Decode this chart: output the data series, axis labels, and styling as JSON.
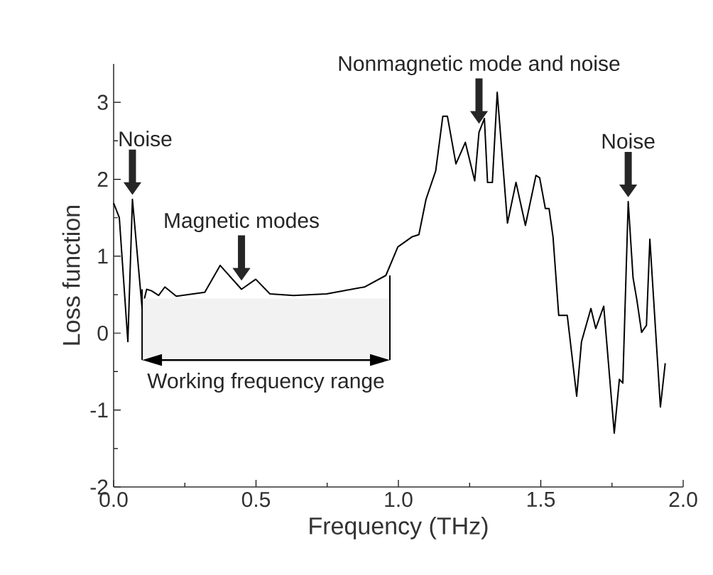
{
  "chart_data": {
    "type": "line",
    "xlabel": "Frequency (THz)",
    "ylabel": "Loss function",
    "x": [
      0,
      0.02,
      0.05,
      0.066,
      0.1,
      0.116,
      0.133,
      0.158,
      0.18,
      0.22,
      0.32,
      0.374,
      0.449,
      0.499,
      0.549,
      0.632,
      0.748,
      0.881,
      0.956,
      0.998,
      1.047,
      1.072,
      1.097,
      1.131,
      1.156,
      1.172,
      1.202,
      1.235,
      1.268,
      1.283,
      1.302,
      1.313,
      1.33,
      1.347,
      1.383,
      1.413,
      1.446,
      1.483,
      1.496,
      1.516,
      1.529,
      1.543,
      1.563,
      1.593,
      1.626,
      1.643,
      1.676,
      1.693,
      1.721,
      1.758,
      1.776,
      1.788,
      1.807,
      1.824,
      1.837,
      1.854,
      1.871,
      1.883,
      1.92,
      1.937
    ],
    "series": [
      {
        "color": "#000000",
        "values": [
          1.69,
          1.5,
          -0.11,
          1.74,
          0.32,
          0.57,
          0.55,
          0.49,
          0.6,
          0.48,
          0.53,
          0.88,
          0.57,
          0.7,
          0.51,
          0.49,
          0.51,
          0.6,
          0.75,
          1.12,
          1.25,
          1.28,
          1.74,
          2.11,
          2.82,
          2.82,
          2.2,
          2.48,
          1.98,
          2.61,
          2.79,
          1.96,
          1.96,
          3.13,
          1.43,
          1.96,
          1.4,
          2.05,
          2.02,
          1.62,
          1.62,
          1.25,
          0.23,
          0.23,
          -0.82,
          -0.11,
          0.32,
          0.06,
          0.35,
          -1.3,
          -0.6,
          -0.65,
          1.71,
          0.72,
          0.44,
          0.01,
          0.1,
          1.22,
          -0.96,
          -0.39
        ]
      }
    ],
    "xlim": [
      0,
      2
    ],
    "ylim": [
      -2,
      3.5
    ],
    "xticks": [
      {
        "value": 0,
        "label": "0.0"
      },
      {
        "value": 0.5,
        "label": "0.5"
      },
      {
        "value": 1,
        "label": "1.0"
      },
      {
        "value": 1.5,
        "label": "1.5"
      },
      {
        "value": 2,
        "label": "2.0"
      }
    ],
    "yticks": [
      -2,
      -1,
      0,
      1,
      2,
      3
    ],
    "grid": false,
    "marker": "none",
    "line_style": "solid",
    "annotations": [
      {
        "text": "Noise",
        "x": 0.066,
        "y": 1.74
      },
      {
        "text": "Magnetic modes",
        "x": 0.449,
        "y": 0.57
      },
      {
        "text": "Nonmagnetic mode and noise",
        "x": 1.283,
        "y": 2.61
      },
      {
        "text": "Noise",
        "x": 1.807,
        "y": 1.71
      }
    ],
    "bands": [
      {
        "axis": "x",
        "from": 0.1,
        "to": 0.97,
        "label": "Working frequency range",
        "color": "#f2f2f2"
      }
    ]
  }
}
